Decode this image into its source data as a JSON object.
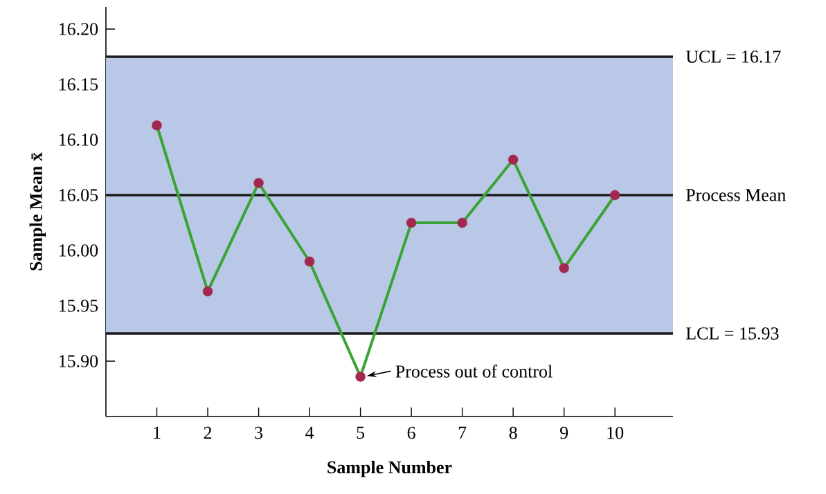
{
  "chart_data": {
    "type": "line",
    "xlabel": "Sample Number",
    "ylabel": "Sample Mean x̄",
    "categories": [
      "1",
      "2",
      "3",
      "4",
      "5",
      "6",
      "7",
      "8",
      "9",
      "10"
    ],
    "series": [
      {
        "color": "#3aa335",
        "colors": [
          "#a3284f",
          "#a3284f",
          "#a3284f",
          "#a3284f",
          "#a3284f",
          "#a3284f",
          "#a3284f",
          "#a3284f",
          "#a3284f",
          "#a3284f"
        ],
        "values": [
          16.113,
          15.963,
          16.061,
          15.99,
          15.886,
          16.025,
          16.025,
          16.082,
          15.984,
          16.05
        ]
      }
    ],
    "marker": "circle",
    "line_style": "solid",
    "ylim": [
      15.85,
      16.22
    ],
    "yticks": [
      {
        "value": 15.9,
        "label": "15.90"
      },
      {
        "value": 15.95,
        "label": "15.95"
      },
      {
        "value": 16.0,
        "label": "16.00"
      },
      {
        "value": 16.05,
        "label": "16.05"
      },
      {
        "value": 16.1,
        "label": "16.10"
      },
      {
        "value": 16.15,
        "label": "16.15"
      },
      {
        "value": 16.2,
        "label": "16.20"
      }
    ],
    "bands": [
      {
        "axis": "y",
        "from": 15.925,
        "to": 16.175,
        "color": "#b8c8e6"
      }
    ],
    "ref_lines": [
      {
        "axis": "y",
        "value": 16.175,
        "label": "UCL = 16.17",
        "color": "#1a1a1a"
      },
      {
        "axis": "y",
        "value": 16.05,
        "label": "Process Mean",
        "color": "#1a1a1a"
      },
      {
        "axis": "y",
        "value": 15.925,
        "label": "LCL = 15.93",
        "color": "#1a1a1a"
      }
    ],
    "annotations": [
      {
        "text": "Process out of control",
        "x": "5",
        "y": 15.886
      }
    ],
    "grid": false
  }
}
